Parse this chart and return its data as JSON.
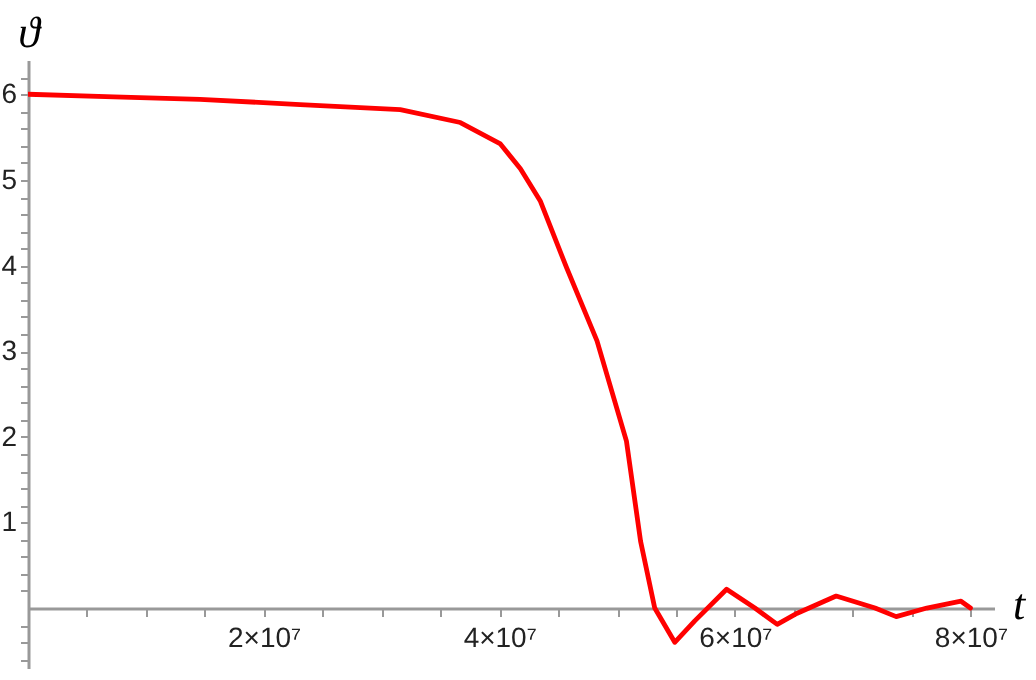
{
  "chart_data": {
    "type": "line",
    "xlabel": "t",
    "ylabel": "ϑ",
    "grid": false,
    "marker": "none",
    "line_style": "solid",
    "xlim": [
      0,
      82000000
    ],
    "ylim": [
      -0.7,
      6.4
    ],
    "xticks": [
      {
        "value": 5000000,
        "label": null
      },
      {
        "value": 10000000,
        "label": null
      },
      {
        "value": 15000000,
        "label": null
      },
      {
        "value": 20000000,
        "label": "2×10⁷"
      },
      {
        "value": 25000000,
        "label": null
      },
      {
        "value": 30000000,
        "label": null
      },
      {
        "value": 35000000,
        "label": null
      },
      {
        "value": 40000000,
        "label": "4×10⁷"
      },
      {
        "value": 45000000,
        "label": null
      },
      {
        "value": 50000000,
        "label": null
      },
      {
        "value": 55000000,
        "label": null
      },
      {
        "value": 60000000,
        "label": "6×10⁷"
      },
      {
        "value": 65000000,
        "label": null
      },
      {
        "value": 70000000,
        "label": null
      },
      {
        "value": 75000000,
        "label": null
      },
      {
        "value": 80000000,
        "label": "8×10⁷"
      }
    ],
    "yticks": [
      {
        "value": -0.6,
        "label": null
      },
      {
        "value": -0.4,
        "label": null
      },
      {
        "value": -0.2,
        "label": null
      },
      {
        "value": 0.2,
        "label": null
      },
      {
        "value": 0.4,
        "label": null
      },
      {
        "value": 0.6,
        "label": null
      },
      {
        "value": 0.8,
        "label": null
      },
      1,
      {
        "value": 1.2,
        "label": null
      },
      {
        "value": 1.4,
        "label": null
      },
      {
        "value": 1.6,
        "label": null
      },
      {
        "value": 1.8,
        "label": null
      },
      2,
      {
        "value": 2.2,
        "label": null
      },
      {
        "value": 2.4,
        "label": null
      },
      {
        "value": 2.6,
        "label": null
      },
      {
        "value": 2.8,
        "label": null
      },
      3,
      {
        "value": 3.2,
        "label": null
      },
      {
        "value": 3.4,
        "label": null
      },
      {
        "value": 3.6,
        "label": null
      },
      {
        "value": 3.8,
        "label": null
      },
      4,
      {
        "value": 4.2,
        "label": null
      },
      {
        "value": 4.4,
        "label": null
      },
      {
        "value": 4.6,
        "label": null
      },
      {
        "value": 4.8,
        "label": null
      },
      5,
      {
        "value": 5.2,
        "label": null
      },
      {
        "value": 5.4,
        "label": null
      },
      {
        "value": 5.6,
        "label": null
      },
      {
        "value": 5.8,
        "label": null
      },
      6,
      {
        "value": 6.2,
        "label": null
      }
    ],
    "x": [
      0,
      7300000,
      14600000,
      23100000,
      31600000,
      36700000,
      40100000,
      41800000,
      43500000,
      45700000,
      48300000,
      50800000,
      52000000,
      53200000,
      54900000,
      56600000,
      59300000,
      61700000,
      63600000,
      65300000,
      68600000,
      71900000,
      73700000,
      76300000,
      79200000,
      80000000
    ],
    "series": [
      {
        "color": "#ff0000",
        "values": [
          6.0,
          5.97,
          5.94,
          5.88,
          5.82,
          5.67,
          5.42,
          5.13,
          4.75,
          3.98,
          3.12,
          1.95,
          0.78,
          0.0,
          -0.4,
          -0.15,
          0.22,
          0.0,
          -0.19,
          -0.06,
          0.14,
          0.0,
          -0.1,
          0.0,
          0.08,
          0.0
        ]
      }
    ]
  }
}
